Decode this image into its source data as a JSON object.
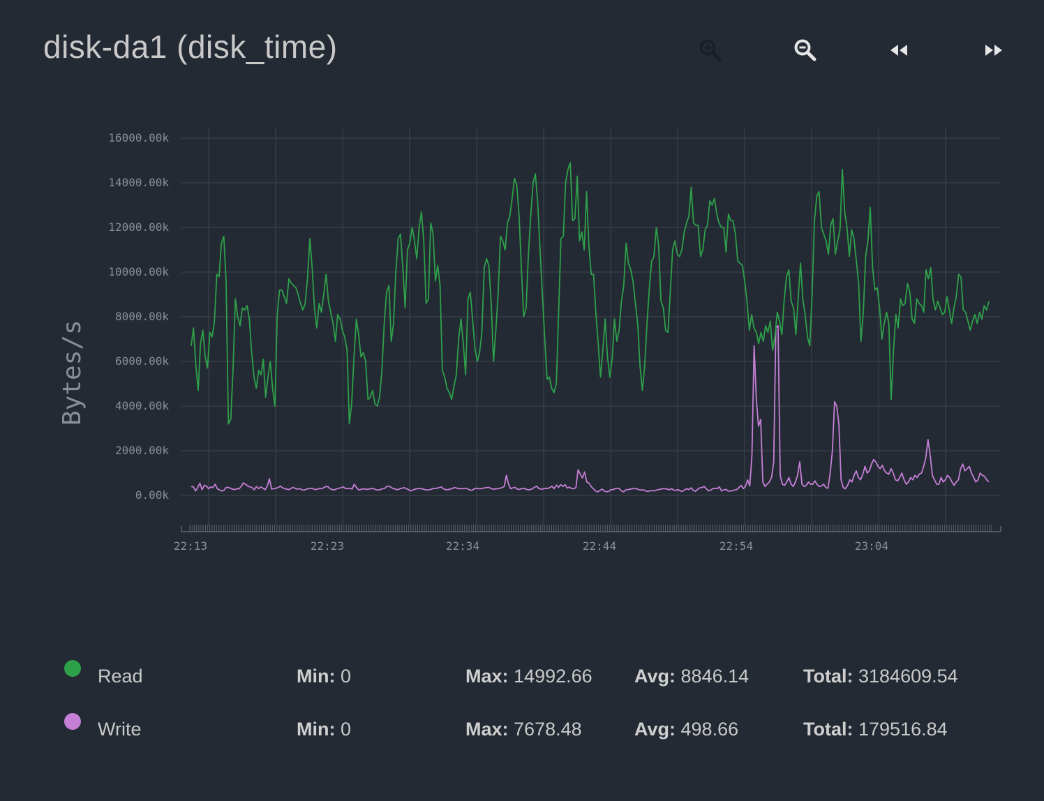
{
  "title": "disk-da1 (disk_time)",
  "toolbar": {
    "zoom_in_icon": "zoom-in-icon",
    "zoom_out_icon": "zoom-out-icon",
    "rewind_icon": "rewind-icon",
    "forward_icon": "fast-forward-icon"
  },
  "colors": {
    "background": "#232a33",
    "read": "#2ea04a",
    "write": "#c57fd6",
    "grid": "#3b424b"
  },
  "chart_data": {
    "type": "line",
    "ylabel": "Bytes/s",
    "ylim": [
      -1500,
      16500
    ],
    "y_ticks": [
      "16000.00k",
      "14000.00k",
      "12000.00k",
      "10000.00k",
      "8000.00k",
      "6000.00k",
      "4000.00k",
      "2000.00k",
      "0.00k"
    ],
    "y_tick_values": [
      16000,
      14000,
      12000,
      10000,
      8000,
      6000,
      4000,
      2000,
      0
    ],
    "x_ticks": [
      "22:13",
      "22:23",
      "22:34",
      "22:44",
      "22:54",
      "23:04"
    ],
    "x_start": "22:13",
    "x_end": "23:12",
    "grid": true,
    "series": [
      {
        "name": "Read",
        "color": "#2ea04a",
        "values": [
          6700,
          7500,
          5800,
          4700,
          6800,
          7400,
          6200,
          5700,
          7300,
          7100,
          7800,
          9900,
          9800,
          11300,
          11600,
          9600,
          3200,
          3400,
          5700,
          8800,
          8000,
          7600,
          8400,
          8300,
          8500,
          7900,
          6400,
          5300,
          4800,
          5600,
          5400,
          6100,
          4400,
          5300,
          6000,
          4800,
          4000,
          8100,
          9200,
          9200,
          8900,
          8600,
          9700,
          9500,
          9400,
          9300,
          9000,
          8600,
          8300,
          8600,
          9700,
          11500,
          10200,
          8400,
          7500,
          8600,
          8200,
          9000,
          9900,
          8700,
          8200,
          7700,
          6900,
          8100,
          7900,
          7400,
          7100,
          6500,
          3200,
          4100,
          6200,
          7900,
          7200,
          6200,
          6400,
          6000,
          4300,
          4400,
          4700,
          4100,
          4000,
          4400,
          5600,
          7700,
          9100,
          9400,
          6900,
          7700,
          10000,
          11500,
          11700,
          10200,
          8400,
          11000,
          11300,
          12000,
          11400,
          10600,
          12000,
          12700,
          11400,
          8600,
          8800,
          12200,
          11700,
          9600,
          10300,
          9400,
          5600,
          5300,
          4800,
          4600,
          4300,
          4900,
          5400,
          7000,
          7900,
          6800,
          5400,
          8800,
          9100,
          7900,
          6600,
          6000,
          6400,
          7300,
          10200,
          10600,
          10300,
          8600,
          6000,
          7400,
          9100,
          11600,
          11400,
          11000,
          12200,
          12500,
          13300,
          14200,
          13900,
          12500,
          10100,
          8000,
          8400,
          10800,
          12500,
          14000,
          14400,
          13100,
          11000,
          9000,
          7100,
          5200,
          5300,
          4800,
          4600,
          5000,
          8200,
          11500,
          11600,
          14000,
          14600,
          14900,
          12300,
          12400,
          14300,
          11400,
          11800,
          11000,
          13600,
          11200,
          9900,
          9900,
          8200,
          6800,
          5300,
          6500,
          7900,
          6200,
          5300,
          6100,
          7900,
          6900,
          7400,
          8700,
          9400,
          11300,
          10400,
          10100,
          9600,
          8600,
          7700,
          5800,
          4700,
          5800,
          7700,
          9300,
          10500,
          10700,
          12000,
          11200,
          8700,
          8400,
          7400,
          7300,
          9100,
          11000,
          11400,
          10800,
          10700,
          11000,
          11800,
          12200,
          12500,
          13800,
          12200,
          12100,
          12100,
          10700,
          11000,
          11900,
          12100,
          13200,
          13000,
          13300,
          12600,
          12200,
          12000,
          12000,
          10900,
          12600,
          12300,
          12300,
          11700,
          10500,
          10400,
          10300,
          9600,
          8700,
          7400,
          8100,
          7500,
          7300,
          6800,
          7300,
          6900,
          7600,
          7300,
          7800,
          6500,
          7100,
          8200,
          7800,
          7200,
          8800,
          9800,
          10100,
          8700,
          8400,
          7200,
          8800,
          10400,
          8800,
          8100,
          7100,
          6700,
          9000,
          12300,
          13400,
          13600,
          12000,
          11700,
          11400,
          10800,
          12100,
          12400,
          10800,
          11400,
          11900,
          14600,
          12700,
          12000,
          10700,
          11900,
          11500,
          10500,
          9500,
          6900,
          8200,
          10700,
          11400,
          12900,
          10200,
          9200,
          9300,
          8400,
          7000,
          7700,
          8200,
          7700,
          4300,
          6500,
          8100,
          7500,
          8800,
          8500,
          8600,
          9500,
          9100,
          7900,
          7700,
          8800,
          8600,
          8500,
          8200,
          10100,
          9700,
          10200,
          8800,
          8300,
          8700,
          8400,
          8100,
          8200,
          8900,
          8300,
          7700,
          8400,
          8900,
          9900,
          9800,
          8300,
          8200,
          7800,
          7400,
          7800,
          8100,
          7700,
          8200,
          7900,
          8500,
          8300,
          8700
        ]
      },
      {
        "name": "Write",
        "color": "#c57fd6",
        "values": [
          400,
          380,
          200,
          350,
          550,
          250,
          450,
          420,
          300,
          380,
          350,
          500,
          300,
          250,
          200,
          220,
          350,
          360,
          320,
          280,
          260,
          300,
          290,
          400,
          560,
          500,
          420,
          380,
          350,
          250,
          400,
          300,
          380,
          320,
          260,
          420,
          750,
          280,
          300,
          320,
          350,
          420,
          340,
          300,
          280,
          260,
          320,
          360,
          300,
          280,
          310,
          250,
          230,
          280,
          300,
          320,
          300,
          260,
          280,
          310,
          300,
          350,
          400,
          380,
          290,
          260,
          250,
          300,
          320,
          350,
          380,
          310,
          300,
          320,
          280,
          500,
          360,
          250,
          260,
          300,
          280,
          270,
          290,
          310,
          300,
          250,
          240,
          260,
          300,
          310,
          400,
          420,
          360,
          300,
          280,
          250,
          300,
          320,
          350,
          300,
          260,
          200,
          240,
          280,
          300,
          310,
          300,
          270,
          250,
          240,
          260,
          300,
          310,
          320,
          350,
          380,
          300,
          260,
          250,
          280,
          300,
          350,
          330,
          300,
          300,
          300,
          320,
          300,
          250,
          220,
          280,
          320,
          300,
          300,
          310,
          340,
          350,
          360,
          300,
          280,
          290,
          300,
          320,
          350,
          400,
          900,
          500,
          300,
          340,
          360,
          280,
          270,
          300,
          320,
          280,
          250,
          260,
          300,
          370,
          410,
          300,
          280,
          290,
          320,
          310,
          350,
          410,
          300,
          460,
          360,
          480,
          400,
          480,
          330,
          370,
          310,
          300,
          350,
          1150,
          950,
          780,
          1050,
          600,
          550,
          400,
          300,
          200,
          160,
          220,
          280,
          200,
          160,
          180,
          250,
          260,
          300,
          320,
          300,
          200,
          160,
          250,
          260,
          280,
          300,
          310,
          300,
          250,
          240,
          250,
          200,
          180,
          200,
          220,
          200,
          240,
          260,
          280,
          300,
          300,
          280,
          250,
          300,
          240,
          220,
          260,
          200,
          180,
          250,
          300,
          260,
          340,
          230,
          180,
          270,
          340,
          350,
          400,
          300,
          200,
          240,
          300,
          320,
          300,
          380,
          200,
          250,
          270,
          200,
          190,
          210,
          240,
          260,
          350,
          450,
          300,
          400,
          700,
          420,
          1800,
          6700,
          4300,
          3100,
          3400,
          600,
          400,
          500,
          600,
          800,
          1500,
          7500,
          7600,
          900,
          500,
          450,
          600,
          800,
          500,
          400,
          600,
          900,
          1500,
          500,
          400,
          450,
          600,
          500,
          500,
          650,
          480,
          400,
          420,
          500,
          350,
          320,
          1000,
          2000,
          4200,
          4000,
          3200,
          700,
          350,
          300,
          450,
          700,
          600,
          900,
          1100,
          800,
          700,
          950,
          1300,
          1000,
          1100,
          1400,
          1600,
          1500,
          1300,
          1200,
          1350,
          1100,
          1000,
          950,
          1200,
          1000,
          700,
          650,
          800,
          1000,
          700,
          500,
          600,
          800,
          700,
          900,
          800,
          950,
          1000,
          1300,
          1700,
          2500,
          1800,
          900,
          700,
          500,
          500,
          800,
          600,
          700,
          900,
          800,
          600,
          450,
          600,
          700,
          1200,
          1400,
          1100,
          1200,
          1300,
          1000,
          800,
          600,
          700,
          1000,
          900,
          850,
          700,
          600
        ]
      }
    ]
  },
  "legend": [
    {
      "name": "Read",
      "color": "#2ea04a",
      "min_label": "Min:",
      "min": "0",
      "max_label": "Max:",
      "max": "14992.66",
      "avg_label": "Avg:",
      "avg": "8846.14",
      "total_label": "Total:",
      "total": "3184609.54"
    },
    {
      "name": "Write",
      "color": "#c57fd6",
      "min_label": "Min:",
      "min": "0",
      "max_label": "Max:",
      "max": "7678.48",
      "avg_label": "Avg:",
      "avg": "498.66",
      "total_label": "Total:",
      "total": "179516.84"
    }
  ]
}
